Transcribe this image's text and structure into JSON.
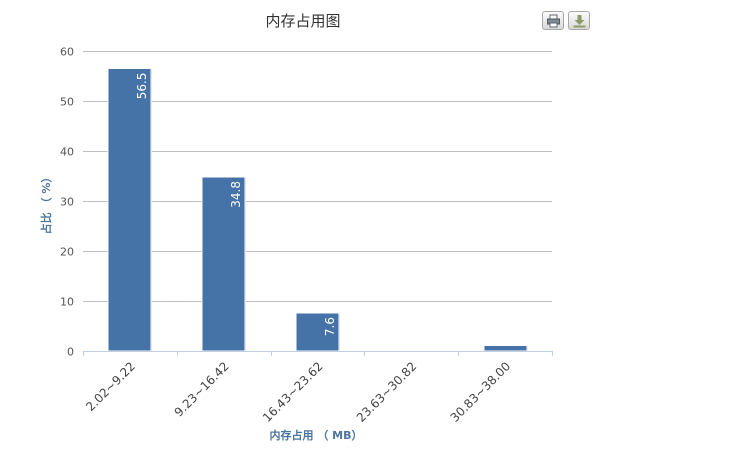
{
  "chart_data": {
    "type": "bar",
    "title": "内存占用图",
    "xlabel": "内存占用 （ MB）",
    "ylabel": "占比 （ %）",
    "categories": [
      "2.02~9.22",
      "9.23~16.42",
      "16.43~23.62",
      "23.63~30.82",
      "30.83~38.00"
    ],
    "values": [
      56.5,
      34.8,
      7.6,
      0,
      1.1
    ],
    "data_labels": [
      "56.5",
      "34.8",
      "7.6",
      "",
      ""
    ],
    "ylim": [
      0,
      60
    ],
    "yticks": [
      "0",
      "10",
      "20",
      "30",
      "40",
      "50",
      "60"
    ],
    "grid": true,
    "legend": "none",
    "bar_color": "#4572a7"
  },
  "toolbar": {
    "print_icon": "printer-icon",
    "export_icon": "download-icon"
  }
}
